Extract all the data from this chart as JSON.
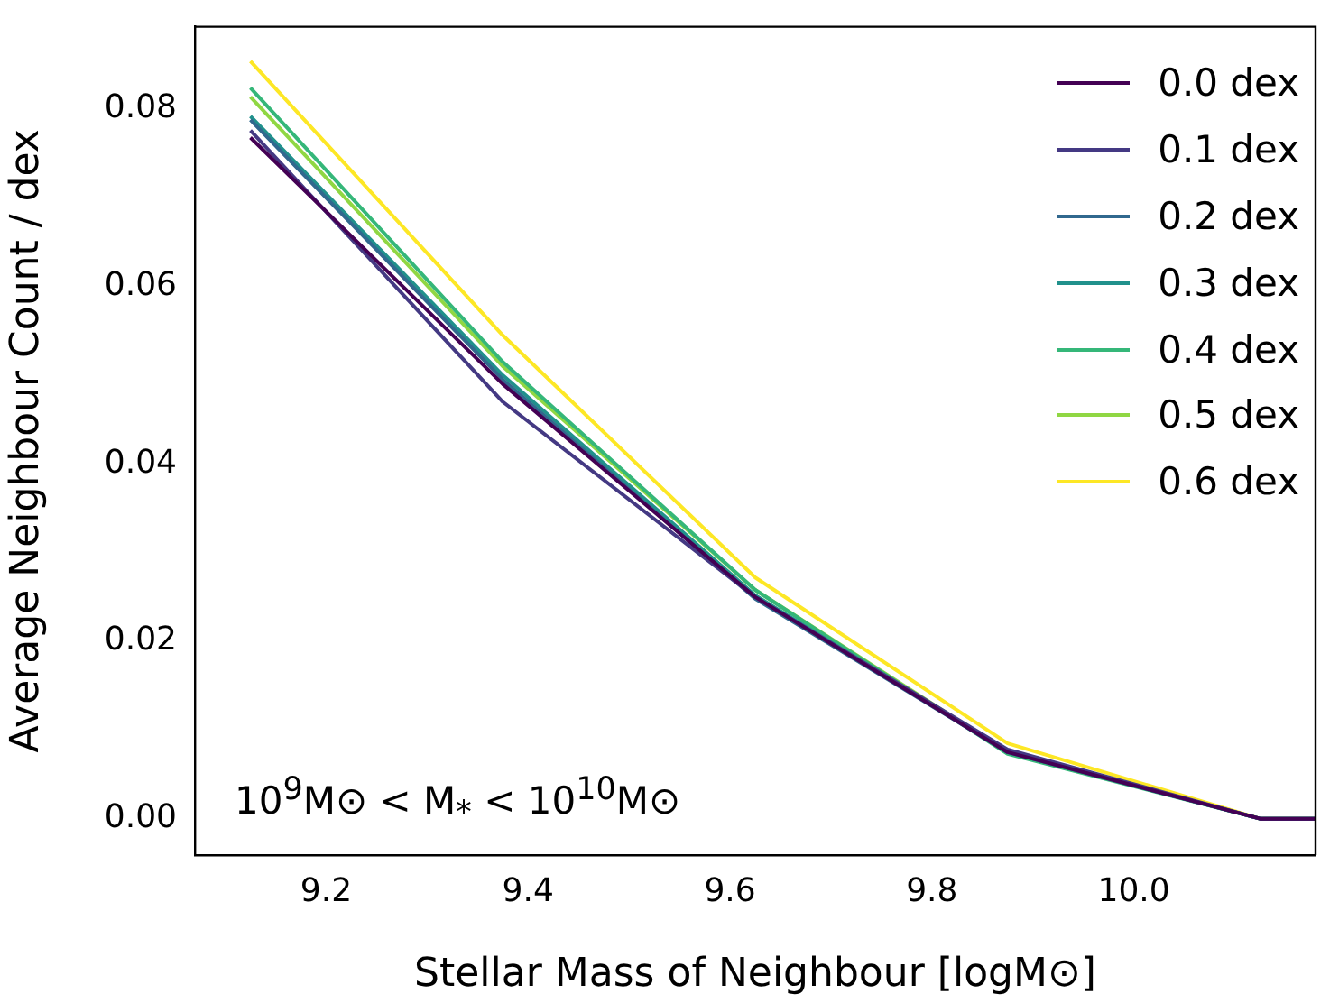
{
  "chart_data": {
    "type": "line",
    "xlabel": "Stellar Mass of Neighbour [logM⊙]",
    "ylabel": "Average Neighbour Count / dex",
    "x": [
      9.125,
      9.375,
      9.625,
      9.875,
      10.125,
      10.18
    ],
    "series": [
      {
        "name": "0.0 dex",
        "color": "#440154",
        "values": [
          0.0768,
          0.049,
          0.025,
          0.0075,
          0,
          0
        ]
      },
      {
        "name": "0.1 dex",
        "color": "#443983",
        "values": [
          0.0776,
          0.047,
          0.025,
          0.0078,
          0,
          0
        ]
      },
      {
        "name": "0.2 dex",
        "color": "#31688e",
        "values": [
          0.0788,
          0.0495,
          0.0248,
          0.0075,
          0,
          0
        ]
      },
      {
        "name": "0.3 dex",
        "color": "#21918c",
        "values": [
          0.0792,
          0.05,
          0.0252,
          0.0075,
          0,
          0
        ]
      },
      {
        "name": "0.4 dex",
        "color": "#35b779",
        "values": [
          0.0824,
          0.0515,
          0.0258,
          0.0073,
          0,
          0
        ]
      },
      {
        "name": "0.5 dex",
        "color": "#90d743",
        "values": [
          0.0814,
          0.051,
          0.0258,
          0.0075,
          0,
          0
        ]
      },
      {
        "name": "0.6 dex",
        "color": "#fde725",
        "values": [
          0.0854,
          0.0545,
          0.0272,
          0.0085,
          0,
          0
        ]
      }
    ],
    "xlim": [
      9.07,
      10.18
    ],
    "xticks": [
      9.2,
      9.4,
      9.6,
      9.8,
      {
        "value": 10,
        "label": "10.0"
      }
    ],
    "ylim": [
      -0.0041,
      0.0893
    ],
    "yticks": [
      {
        "value": 0,
        "label": "0.00"
      },
      {
        "value": 0.02,
        "label": "0.02"
      },
      {
        "value": 0.04,
        "label": "0.04"
      },
      {
        "value": 0.06,
        "label": "0.06"
      },
      {
        "value": 0.08,
        "label": "0.08"
      }
    ],
    "grid": false,
    "legend": "top right",
    "marker": "none",
    "line_style": "solid",
    "annotations": [
      "10$^{9}$M⊙ < M$_{*}$ < 10$^{10}$M⊙"
    ]
  }
}
